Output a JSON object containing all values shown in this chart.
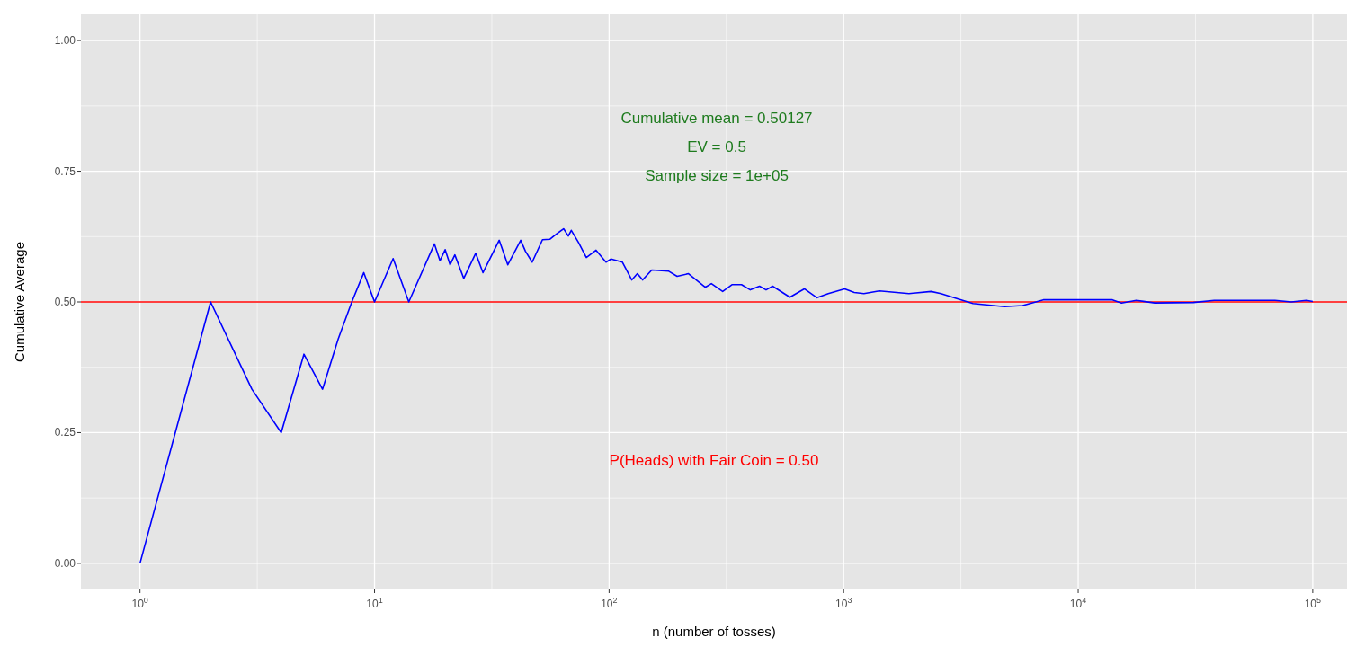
{
  "chart_data": {
    "type": "line",
    "xlabel": "n (number of tosses)",
    "ylabel": "Cumulative Average",
    "log": "x",
    "grid": true,
    "marker": "none",
    "line_style": "solid",
    "xlim": [
      0.56,
      140000
    ],
    "ylim": [
      -0.05,
      1.05
    ],
    "xticks": [
      {
        "value": 1,
        "label": "10$^{0}$"
      },
      {
        "value": 10,
        "label": "10$^{1}$"
      },
      {
        "value": 100,
        "label": "10$^{2}$"
      },
      {
        "value": 1000,
        "label": "10$^{3}$"
      },
      {
        "value": 10000,
        "label": "10$^{4}$"
      },
      {
        "value": 100000,
        "label": "10$^{5}$"
      }
    ],
    "yticks": [
      {
        "value": 0,
        "label": "0.00"
      },
      {
        "value": 0.25,
        "label": "0.25"
      },
      {
        "value": 0.5,
        "label": "0.50"
      },
      {
        "value": 0.75,
        "label": "0.75"
      },
      {
        "value": 1,
        "label": "1.00"
      }
    ],
    "x": [
      1,
      2,
      3,
      4,
      5,
      6,
      7,
      8,
      9,
      10,
      12,
      14,
      18,
      19,
      20,
      21,
      22,
      24,
      27,
      29,
      34,
      37,
      42,
      44,
      47,
      52,
      56,
      60,
      64,
      67,
      69,
      74,
      80,
      88,
      97,
      102,
      114,
      125,
      132,
      139,
      152,
      179,
      195,
      218,
      257,
      273,
      305,
      334,
      367,
      400,
      438,
      467,
      498,
      590,
      680,
      770,
      860,
      1010,
      1110,
      1220,
      1420,
      1900,
      2360,
      2600,
      3170,
      3560,
      4850,
      5800,
      7100,
      10100,
      14000,
      15300,
      17700,
      21200,
      31000,
      38000,
      69000,
      81000,
      94000,
      100000
    ],
    "series": [
      {
        "color": "#0000ff",
        "values": [
          0,
          0.5,
          0.333,
          0.25,
          0.4,
          0.333,
          0.429,
          0.5,
          0.556,
          0.5,
          0.583,
          0.5,
          0.611,
          0.579,
          0.6,
          0.571,
          0.59,
          0.545,
          0.593,
          0.556,
          0.618,
          0.571,
          0.618,
          0.597,
          0.576,
          0.619,
          0.62,
          0.631,
          0.64,
          0.626,
          0.637,
          0.614,
          0.585,
          0.599,
          0.576,
          0.582,
          0.576,
          0.542,
          0.554,
          0.542,
          0.561,
          0.559,
          0.549,
          0.554,
          0.528,
          0.535,
          0.52,
          0.533,
          0.533,
          0.523,
          0.53,
          0.523,
          0.53,
          0.509,
          0.525,
          0.508,
          0.516,
          0.525,
          0.518,
          0.516,
          0.521,
          0.516,
          0.52,
          0.516,
          0.504,
          0.497,
          0.491,
          0.493,
          0.504,
          0.504,
          0.504,
          0.498,
          0.503,
          0.498,
          0.499,
          0.503,
          0.503,
          0.5,
          0.503,
          0.501
        ]
      }
    ],
    "ref_lines": [
      {
        "axis": "y",
        "value": 0.5,
        "label": "P(Heads) with Fair Coin = 0.50",
        "color": "#ff0000"
      }
    ],
    "annotations": [
      "Cumulative mean = 0.50127",
      "EV = 0.5",
      "Sample size = 1e+05"
    ]
  }
}
